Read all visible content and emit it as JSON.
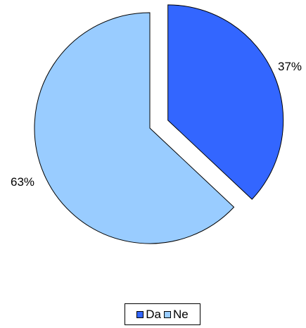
{
  "chart_data": {
    "type": "pie",
    "title": "",
    "slices": [
      {
        "name": "Da",
        "value": 37,
        "label": "37%",
        "color": "#3366ff",
        "exploded": true
      },
      {
        "name": "Ne",
        "value": 63,
        "label": "63%",
        "color": "#99ccff",
        "exploded": false
      }
    ],
    "start_angle_deg": 0,
    "direction": "clockwise",
    "legend": {
      "placement": "bottom",
      "entries": [
        "Da",
        "Ne"
      ]
    }
  }
}
